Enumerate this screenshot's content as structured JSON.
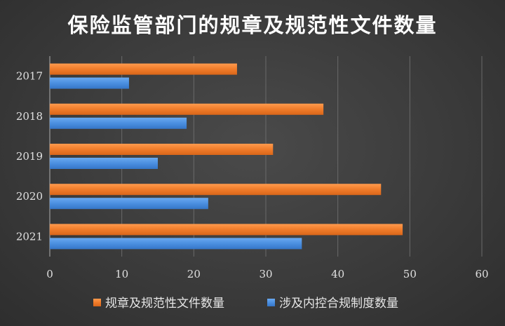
{
  "chart_data": {
    "type": "bar",
    "orientation": "horizontal",
    "title": "保险监管部门的规章及规范性文件数量",
    "categories": [
      "2017",
      "2018",
      "2019",
      "2020",
      "2021"
    ],
    "series": [
      {
        "name": "规章及规范性文件数量",
        "values": [
          26,
          38,
          31,
          46,
          49
        ],
        "color": "#f07c2a"
      },
      {
        "name": "涉及内控合规制度数量",
        "values": [
          11,
          19,
          15,
          22,
          35
        ],
        "color": "#4b8fe0"
      }
    ],
    "xlim": [
      0,
      60
    ],
    "xticks": [
      "0",
      "10",
      "20",
      "30",
      "40",
      "50",
      "60"
    ],
    "grid": true,
    "legend_position": "bottom"
  }
}
